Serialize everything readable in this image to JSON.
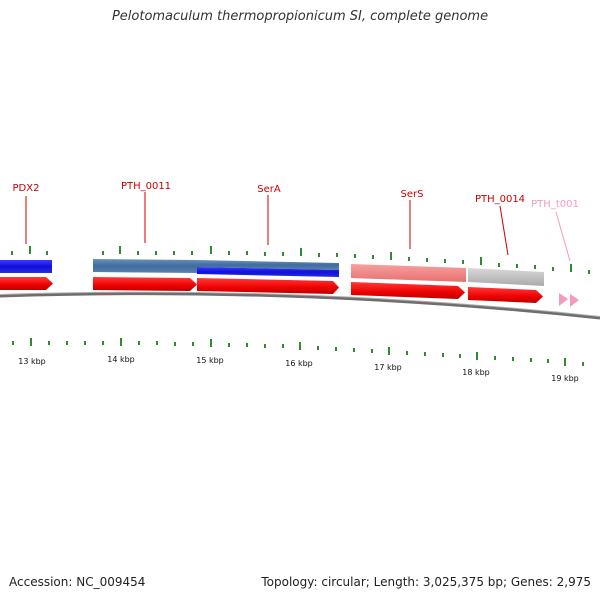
{
  "title": "Pelotomaculum thermopropionicum SI, complete genome",
  "footer": {
    "accession": "Accession: NC_009454",
    "summary": "Topology: circular; Length: 3,025,375 bp; Genes: 2,975"
  },
  "colors": {
    "cds_forward": "#ff0000",
    "tick_green": "#2e8b2e",
    "backbone": "#808080",
    "label_red": "#cc0000",
    "label_pink": "#f49ac1",
    "trna": "#f49ac1"
  },
  "scale": {
    "unit": "kbp",
    "ticks": [
      "13 kbp",
      "14 kbp",
      "15 kbp",
      "16 kbp",
      "17 kbp",
      "18 kbp",
      "19 kbp"
    ]
  },
  "genes": [
    {
      "id": "PDX2",
      "label": "PDX2",
      "color_band": "#1a1ae0",
      "label_color": "#cc0000"
    },
    {
      "id": "PTH_0011",
      "label": "PTH_0011",
      "color_band": "#4f79a8",
      "label_color": "#cc0000"
    },
    {
      "id": "SerA",
      "label": "SerA",
      "color_band": "#1a1ae0",
      "label_color": "#cc0000"
    },
    {
      "id": "SerS",
      "label": "SerS",
      "color_band": "#f08080",
      "label_color": "#cc0000"
    },
    {
      "id": "PTH_0014",
      "label": "PTH_0014",
      "color_band": "#c0c0c0",
      "label_color": "#cc0000"
    },
    {
      "id": "PTH_t001",
      "label": "PTH_t001",
      "color_band": "",
      "label_color": "#f49ac1"
    }
  ]
}
